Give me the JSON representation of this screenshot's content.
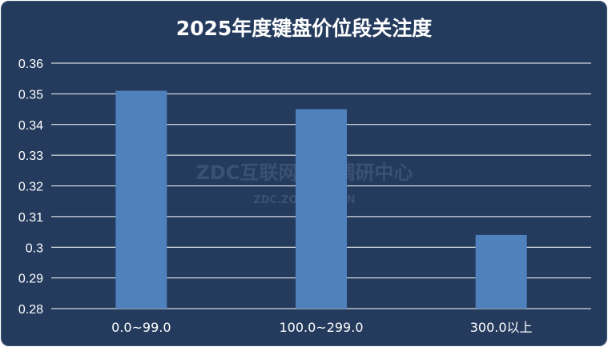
{
  "watermark": {
    "main": "ZDC互联网消费调研中心",
    "sub": "ZDC.ZOL.COM.CN"
  },
  "colors": {
    "background": "#243b5d",
    "bar": "#4f81bd",
    "gridline": "#ffffff",
    "text": "#ffffff"
  },
  "chart_data": {
    "type": "bar",
    "title": "2025年度键盘价位段关注度",
    "xlabel": "",
    "ylabel": "",
    "categories": [
      "0.0~99.0",
      "100.0~299.0",
      "300.0以上"
    ],
    "values": [
      0.351,
      0.345,
      0.304
    ],
    "ylim": [
      0.28,
      0.36
    ],
    "yticks": [
      "0.28",
      "0.29",
      "0.3",
      "0.31",
      "0.32",
      "0.33",
      "0.34",
      "0.35",
      "0.36"
    ],
    "grid": true,
    "legend": "none"
  }
}
